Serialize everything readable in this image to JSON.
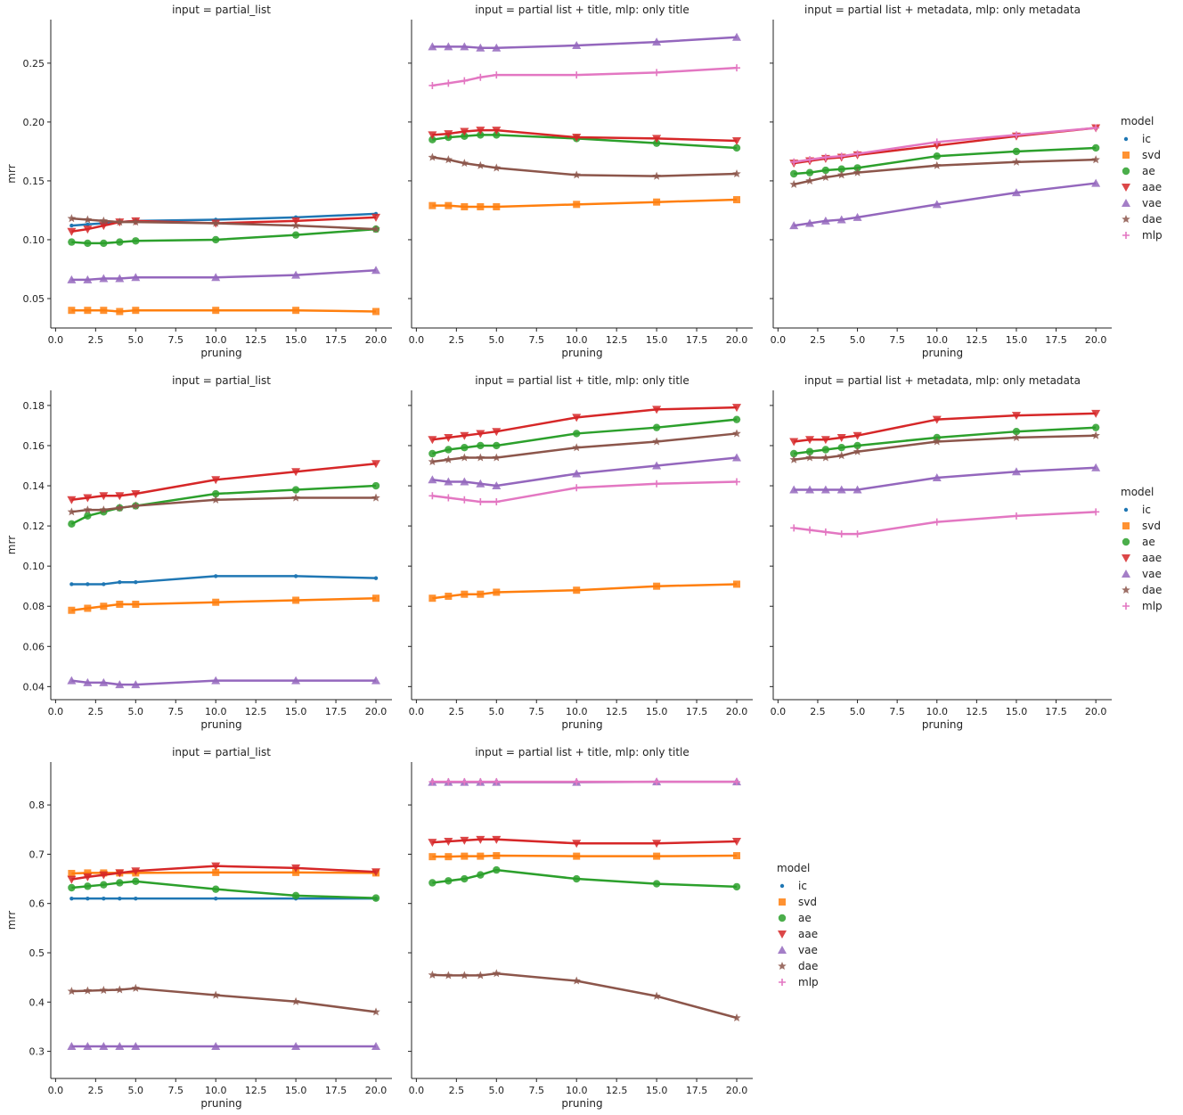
{
  "colors": {
    "ic": "#1f77b4",
    "svd": "#ff7f0e",
    "ae": "#2ca02c",
    "aae": "#d62728",
    "vae": "#9467bd",
    "dae": "#8c564b",
    "mlp": "#e377c2"
  },
  "chart_data": [
    {
      "type": "line",
      "title": "input = partial_list",
      "xlabel": "pruning",
      "ylabel": "mrr",
      "xlim": [
        -0.3,
        21.0
      ],
      "ylim": [
        0.025,
        0.287
      ],
      "xticks": [
        "0.0",
        "2.5",
        "5.0",
        "7.5",
        "10.0",
        "12.5",
        "15.0",
        "17.5",
        "20.0"
      ],
      "yticks": [
        "0.05",
        "0.10",
        "0.15",
        "0.20",
        "0.25"
      ],
      "x": [
        1,
        2,
        3,
        4,
        5,
        10,
        15,
        20
      ],
      "series": [
        {
          "name": "ic",
          "values": [
            0.112,
            0.113,
            0.114,
            0.115,
            0.116,
            0.117,
            0.119,
            0.122
          ]
        },
        {
          "name": "svd",
          "values": [
            0.04,
            0.04,
            0.04,
            0.039,
            0.04,
            0.04,
            0.04,
            0.039
          ]
        },
        {
          "name": "ae",
          "values": [
            0.098,
            0.097,
            0.097,
            0.098,
            0.099,
            0.1,
            0.104,
            0.109
          ]
        },
        {
          "name": "aae",
          "values": [
            0.107,
            0.109,
            0.112,
            0.115,
            0.116,
            0.114,
            0.116,
            0.119
          ]
        },
        {
          "name": "vae",
          "values": [
            0.066,
            0.066,
            0.067,
            0.067,
            0.068,
            0.068,
            0.07,
            0.074
          ]
        },
        {
          "name": "dae",
          "values": [
            0.118,
            0.117,
            0.116,
            0.115,
            0.115,
            0.114,
            0.112,
            0.109
          ]
        }
      ]
    },
    {
      "type": "line",
      "title": "input = partial list + title, mlp: only title",
      "xlabel": "pruning",
      "ylabel": "",
      "xlim": [
        -0.3,
        21.0
      ],
      "ylim": [
        0.025,
        0.287
      ],
      "xticks": [
        "0.0",
        "2.5",
        "5.0",
        "7.5",
        "10.0",
        "12.5",
        "15.0",
        "17.5",
        "20.0"
      ],
      "yticks": [],
      "x": [
        1,
        2,
        3,
        4,
        5,
        10,
        15,
        20
      ],
      "series": [
        {
          "name": "svd",
          "values": [
            0.129,
            0.129,
            0.128,
            0.128,
            0.128,
            0.13,
            0.132,
            0.134
          ]
        },
        {
          "name": "ae",
          "values": [
            0.185,
            0.187,
            0.188,
            0.189,
            0.189,
            0.186,
            0.182,
            0.178
          ]
        },
        {
          "name": "aae",
          "values": [
            0.189,
            0.19,
            0.192,
            0.193,
            0.193,
            0.187,
            0.186,
            0.184
          ]
        },
        {
          "name": "vae",
          "values": [
            0.264,
            0.264,
            0.264,
            0.263,
            0.263,
            0.265,
            0.268,
            0.272
          ]
        },
        {
          "name": "dae",
          "values": [
            0.17,
            0.168,
            0.165,
            0.163,
            0.161,
            0.155,
            0.154,
            0.156
          ]
        },
        {
          "name": "mlp",
          "values": [
            0.231,
            0.233,
            0.235,
            0.238,
            0.24,
            0.24,
            0.242,
            0.246
          ]
        }
      ]
    },
    {
      "type": "line",
      "title": "input = partial list + metadata, mlp: only metadata",
      "xlabel": "pruning",
      "ylabel": "",
      "xlim": [
        -0.3,
        21.0
      ],
      "ylim": [
        0.025,
        0.287
      ],
      "xticks": [
        "0.0",
        "2.5",
        "5.0",
        "7.5",
        "10.0",
        "12.5",
        "15.0",
        "17.5",
        "20.0"
      ],
      "yticks": [],
      "x": [
        1,
        2,
        3,
        4,
        5,
        10,
        15,
        20
      ],
      "series": [
        {
          "name": "ae",
          "values": [
            0.156,
            0.157,
            0.159,
            0.16,
            0.161,
            0.171,
            0.175,
            0.178
          ]
        },
        {
          "name": "aae",
          "values": [
            0.165,
            0.167,
            0.169,
            0.17,
            0.172,
            0.18,
            0.188,
            0.195
          ]
        },
        {
          "name": "vae",
          "values": [
            0.112,
            0.114,
            0.116,
            0.117,
            0.119,
            0.13,
            0.14,
            0.148
          ]
        },
        {
          "name": "dae",
          "values": [
            0.147,
            0.15,
            0.153,
            0.155,
            0.157,
            0.163,
            0.166,
            0.168
          ]
        },
        {
          "name": "mlp",
          "values": [
            0.166,
            0.168,
            0.17,
            0.171,
            0.173,
            0.183,
            0.189,
            0.195
          ]
        }
      ]
    },
    {
      "type": "line",
      "title": "input = partial_list",
      "xlabel": "pruning",
      "ylabel": "mrr",
      "xlim": [
        -0.3,
        21.0
      ],
      "ylim": [
        0.0335,
        0.1875
      ],
      "xticks": [
        "0.0",
        "2.5",
        "5.0",
        "7.5",
        "10.0",
        "12.5",
        "15.0",
        "17.5",
        "20.0"
      ],
      "yticks": [
        "0.04",
        "0.06",
        "0.08",
        "0.10",
        "0.12",
        "0.14",
        "0.16",
        "0.18"
      ],
      "x": [
        1,
        2,
        3,
        4,
        5,
        10,
        15,
        20
      ],
      "series": [
        {
          "name": "ic",
          "values": [
            0.091,
            0.091,
            0.091,
            0.092,
            0.092,
            0.095,
            0.095,
            0.094
          ]
        },
        {
          "name": "svd",
          "values": [
            0.078,
            0.079,
            0.08,
            0.081,
            0.081,
            0.082,
            0.083,
            0.084
          ]
        },
        {
          "name": "ae",
          "values": [
            0.121,
            0.125,
            0.127,
            0.129,
            0.13,
            0.136,
            0.138,
            0.14
          ]
        },
        {
          "name": "aae",
          "values": [
            0.133,
            0.134,
            0.135,
            0.135,
            0.136,
            0.143,
            0.147,
            0.151
          ]
        },
        {
          "name": "vae",
          "values": [
            0.043,
            0.042,
            0.042,
            0.041,
            0.041,
            0.043,
            0.043,
            0.043
          ]
        },
        {
          "name": "dae",
          "values": [
            0.127,
            0.128,
            0.128,
            0.129,
            0.13,
            0.133,
            0.134,
            0.134
          ]
        }
      ]
    },
    {
      "type": "line",
      "title": "input = partial list + title, mlp: only title",
      "xlabel": "pruning",
      "ylabel": "",
      "xlim": [
        -0.3,
        21.0
      ],
      "ylim": [
        0.0335,
        0.1875
      ],
      "xticks": [
        "0.0",
        "2.5",
        "5.0",
        "7.5",
        "10.0",
        "12.5",
        "15.0",
        "17.5",
        "20.0"
      ],
      "yticks": [],
      "x": [
        1,
        2,
        3,
        4,
        5,
        10,
        15,
        20
      ],
      "series": [
        {
          "name": "svd",
          "values": [
            0.084,
            0.085,
            0.086,
            0.086,
            0.087,
            0.088,
            0.09,
            0.091
          ]
        },
        {
          "name": "ae",
          "values": [
            0.156,
            0.158,
            0.159,
            0.16,
            0.16,
            0.166,
            0.169,
            0.173
          ]
        },
        {
          "name": "aae",
          "values": [
            0.163,
            0.164,
            0.165,
            0.166,
            0.167,
            0.174,
            0.178,
            0.179
          ]
        },
        {
          "name": "vae",
          "values": [
            0.143,
            0.142,
            0.142,
            0.141,
            0.14,
            0.146,
            0.15,
            0.154
          ]
        },
        {
          "name": "dae",
          "values": [
            0.152,
            0.153,
            0.154,
            0.154,
            0.154,
            0.159,
            0.162,
            0.166
          ]
        },
        {
          "name": "mlp",
          "values": [
            0.135,
            0.134,
            0.133,
            0.132,
            0.132,
            0.139,
            0.141,
            0.142
          ]
        }
      ]
    },
    {
      "type": "line",
      "title": "input = partial list + metadata, mlp: only metadata",
      "xlabel": "pruning",
      "ylabel": "",
      "xlim": [
        -0.3,
        21.0
      ],
      "ylim": [
        0.0335,
        0.1875
      ],
      "xticks": [
        "0.0",
        "2.5",
        "5.0",
        "7.5",
        "10.0",
        "12.5",
        "15.0",
        "17.5",
        "20.0"
      ],
      "yticks": [],
      "x": [
        1,
        2,
        3,
        4,
        5,
        10,
        15,
        20
      ],
      "series": [
        {
          "name": "ae",
          "values": [
            0.156,
            0.157,
            0.158,
            0.159,
            0.16,
            0.164,
            0.167,
            0.169
          ]
        },
        {
          "name": "aae",
          "values": [
            0.162,
            0.163,
            0.163,
            0.164,
            0.165,
            0.173,
            0.175,
            0.176
          ]
        },
        {
          "name": "vae",
          "values": [
            0.138,
            0.138,
            0.138,
            0.138,
            0.138,
            0.144,
            0.147,
            0.149
          ]
        },
        {
          "name": "dae",
          "values": [
            0.153,
            0.154,
            0.154,
            0.155,
            0.157,
            0.162,
            0.164,
            0.165
          ]
        },
        {
          "name": "mlp",
          "values": [
            0.119,
            0.118,
            0.117,
            0.116,
            0.116,
            0.122,
            0.125,
            0.127
          ]
        }
      ]
    },
    {
      "type": "line",
      "title": "input = partial_list",
      "xlabel": "pruning",
      "ylabel": "mrr",
      "xlim": [
        -0.3,
        21.0
      ],
      "ylim": [
        0.245,
        0.887
      ],
      "xticks": [
        "0.0",
        "2.5",
        "5.0",
        "7.5",
        "10.0",
        "12.5",
        "15.0",
        "17.5",
        "20.0"
      ],
      "yticks": [
        "0.3",
        "0.4",
        "0.5",
        "0.6",
        "0.7",
        "0.8"
      ],
      "x": [
        1,
        2,
        3,
        4,
        5,
        10,
        15,
        20
      ],
      "series": [
        {
          "name": "ic",
          "values": [
            0.61,
            0.61,
            0.61,
            0.61,
            0.61,
            0.61,
            0.61,
            0.61
          ]
        },
        {
          "name": "svd",
          "values": [
            0.661,
            0.662,
            0.662,
            0.662,
            0.662,
            0.663,
            0.663,
            0.662
          ]
        },
        {
          "name": "ae",
          "values": [
            0.632,
            0.635,
            0.638,
            0.642,
            0.645,
            0.629,
            0.616,
            0.611
          ]
        },
        {
          "name": "aae",
          "values": [
            0.649,
            0.654,
            0.658,
            0.662,
            0.666,
            0.676,
            0.672,
            0.664
          ]
        },
        {
          "name": "vae",
          "values": [
            0.31,
            0.31,
            0.31,
            0.31,
            0.31,
            0.31,
            0.31,
            0.31
          ]
        },
        {
          "name": "dae",
          "values": [
            0.422,
            0.423,
            0.424,
            0.425,
            0.428,
            0.414,
            0.401,
            0.38
          ]
        }
      ]
    },
    {
      "type": "line",
      "title": "input = partial list + title, mlp: only title",
      "xlabel": "pruning",
      "ylabel": "",
      "xlim": [
        -0.3,
        21.0
      ],
      "ylim": [
        0.245,
        0.887
      ],
      "xticks": [
        "0.0",
        "2.5",
        "5.0",
        "7.5",
        "10.0",
        "12.5",
        "15.0",
        "17.5",
        "20.0"
      ],
      "yticks": [],
      "x": [
        1,
        2,
        3,
        4,
        5,
        10,
        15,
        20
      ],
      "series": [
        {
          "name": "svd",
          "values": [
            0.695,
            0.695,
            0.696,
            0.696,
            0.697,
            0.696,
            0.696,
            0.697
          ]
        },
        {
          "name": "ae",
          "values": [
            0.642,
            0.646,
            0.65,
            0.658,
            0.668,
            0.65,
            0.64,
            0.634
          ]
        },
        {
          "name": "aae",
          "values": [
            0.724,
            0.726,
            0.728,
            0.73,
            0.73,
            0.722,
            0.722,
            0.726
          ]
        },
        {
          "name": "vae",
          "values": [
            0.846,
            0.846,
            0.846,
            0.846,
            0.846,
            0.846,
            0.847,
            0.847
          ]
        },
        {
          "name": "dae",
          "values": [
            0.455,
            0.454,
            0.454,
            0.454,
            0.458,
            0.443,
            0.412,
            0.368
          ]
        },
        {
          "name": "mlp",
          "values": [
            0.847,
            0.847,
            0.847,
            0.847,
            0.847,
            0.847,
            0.847,
            0.847
          ]
        }
      ]
    }
  ],
  "legends": [
    {
      "title": "model",
      "entries": [
        "ic",
        "svd",
        "ae",
        "aae",
        "vae",
        "dae",
        "mlp"
      ]
    },
    {
      "title": "model",
      "entries": [
        "ic",
        "svd",
        "ae",
        "aae",
        "vae",
        "dae",
        "mlp"
      ]
    },
    {
      "title": "model",
      "entries": [
        "ic",
        "svd",
        "ae",
        "aae",
        "vae",
        "dae",
        "mlp"
      ]
    }
  ]
}
